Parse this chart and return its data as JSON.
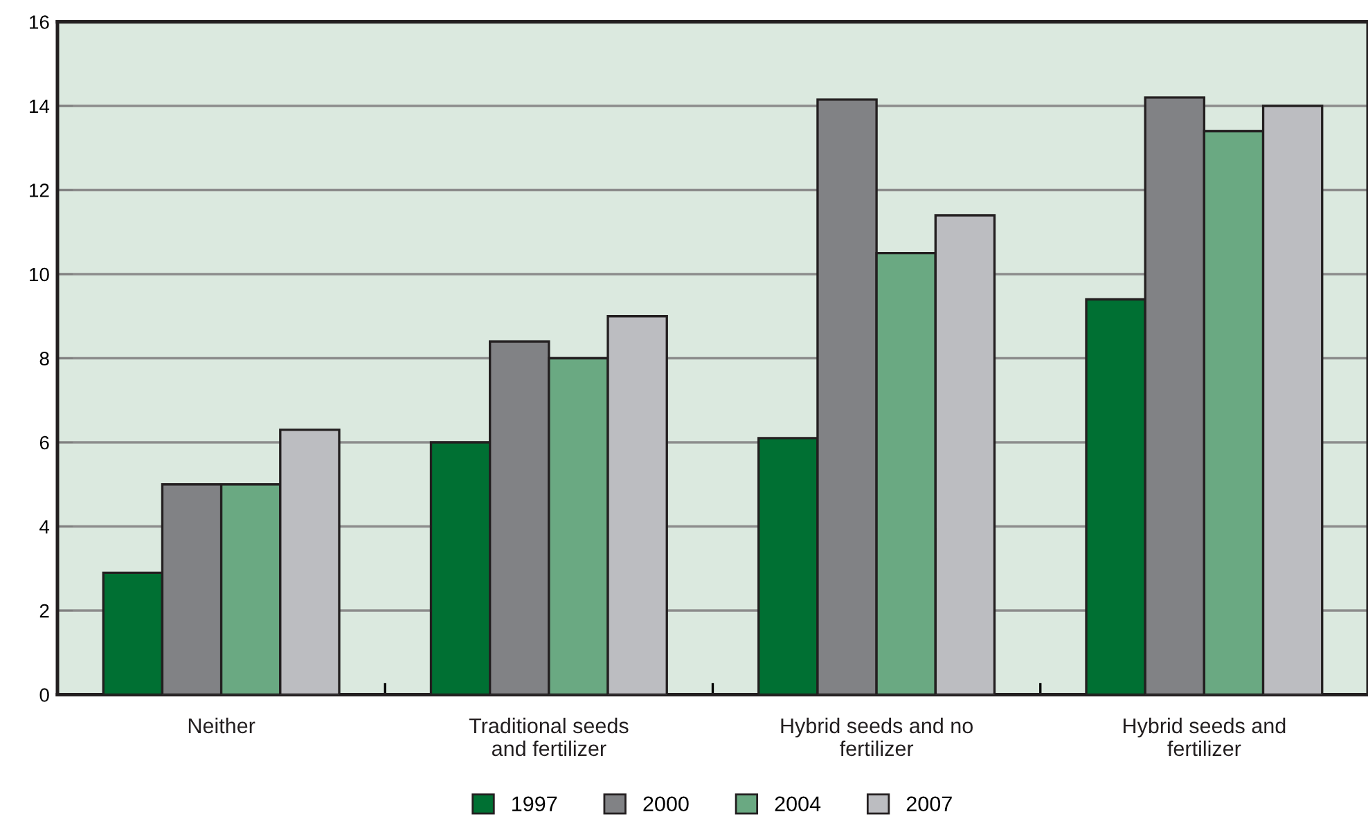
{
  "chart_data": {
    "type": "bar",
    "categories": [
      "Neither",
      "Traditional seeds\nand fertilizer",
      "Hybrid seeds and no\nfertilizer",
      "Hybrid seeds and\nfertilizer"
    ],
    "series": [
      {
        "name": "1997",
        "color": "#007033",
        "values": [
          2.9,
          6.0,
          6.1,
          9.4
        ]
      },
      {
        "name": "2000",
        "color": "#818285",
        "values": [
          5.0,
          8.4,
          14.15,
          14.2
        ]
      },
      {
        "name": "2004",
        "color": "#6aa982",
        "values": [
          5.0,
          8.0,
          10.5,
          13.4
        ]
      },
      {
        "name": "2007",
        "color": "#bcbdc1",
        "values": [
          6.3,
          9.0,
          11.4,
          14.0
        ]
      }
    ],
    "ylim": [
      0,
      16
    ],
    "yticks": [
      0,
      2,
      4,
      6,
      8,
      10,
      12,
      14,
      16
    ],
    "grid": "y",
    "legend": "bottom"
  }
}
